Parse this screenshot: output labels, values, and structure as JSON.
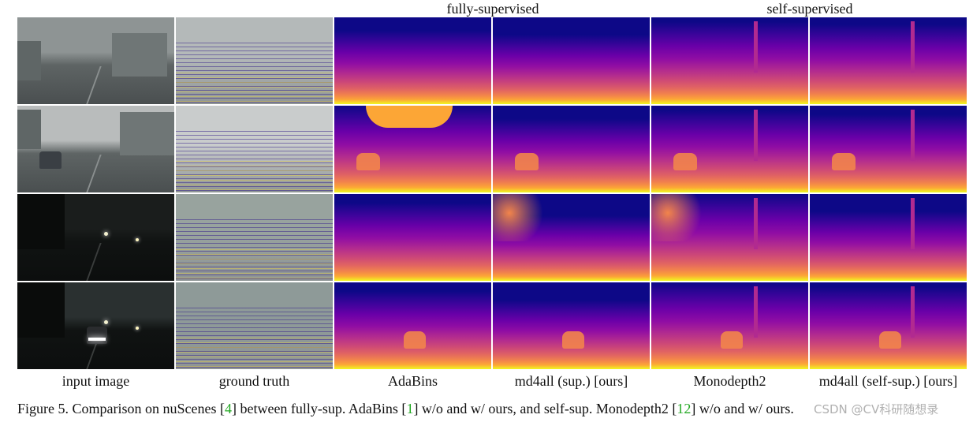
{
  "header": {
    "fully_supervised": "fully-supervised",
    "self_supervised": "self-supervised"
  },
  "columns": [
    {
      "label": "input image",
      "kind": "rgb"
    },
    {
      "label": "ground truth",
      "kind": "lidar"
    },
    {
      "label": "AdaBins",
      "kind": "depth"
    },
    {
      "label": "md4all (sup.) [ours]",
      "kind": "depth"
    },
    {
      "label": "Monodepth2",
      "kind": "depth"
    },
    {
      "label": "md4all (self-sup.) [ours]",
      "kind": "depth"
    }
  ],
  "rows": [
    {
      "scene": "rainy day, wet road"
    },
    {
      "scene": "rainy day, city intersection with car"
    },
    {
      "scene": "night, dark road"
    },
    {
      "scene": "rainy night, car ahead"
    }
  ],
  "caption": {
    "prefix": "Figure 5. Comparison on nuScenes [",
    "ref1": "4",
    "mid1": "] between fully-sup. AdaBins [",
    "ref2": "1",
    "mid2": "] w/o and w/ ours, and self-sup. Monodepth2 [",
    "ref3": "12",
    "suffix": "] w/o and w/ ours."
  },
  "watermark": "CSDN @CV科研随想录",
  "colors": {
    "plasma_far": "#3a0a9a",
    "plasma_mid": "#b12a90",
    "plasma_near": "#f0f921",
    "reference_green": "#22a822"
  }
}
